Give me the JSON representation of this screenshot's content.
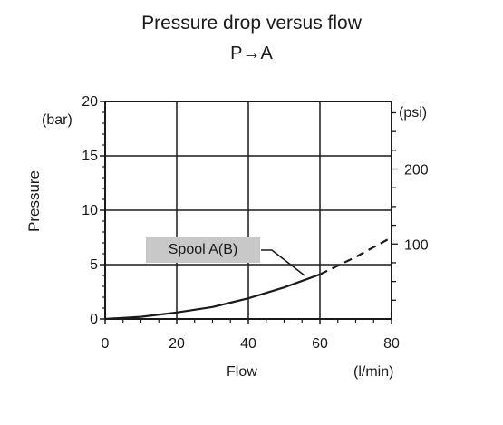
{
  "chart_data": {
    "type": "line",
    "title": "Pressure drop versus flow",
    "subtitle": "P→A",
    "xlabel": "Flow",
    "xunit": "(l/min)",
    "ylabel": "Pressure",
    "yunit_left": "(bar)",
    "yunit_right": "(psi)",
    "xlim": [
      0,
      80
    ],
    "ylim": [
      0,
      20
    ],
    "x_ticks": [
      0,
      20,
      40,
      60,
      80
    ],
    "y_ticks": [
      0,
      5,
      10,
      15,
      20
    ],
    "y_right_ticks": [
      100,
      200
    ],
    "grid": true,
    "series": [
      {
        "name": "Spool A(B)",
        "x": [
          0,
          10,
          20,
          30,
          40,
          50,
          60,
          65,
          70,
          75,
          80
        ],
        "y": [
          0,
          0.2,
          0.6,
          1.1,
          1.9,
          2.9,
          4.1,
          4.9,
          5.7,
          6.6,
          7.5
        ],
        "solid_until_x": 60
      }
    ]
  }
}
